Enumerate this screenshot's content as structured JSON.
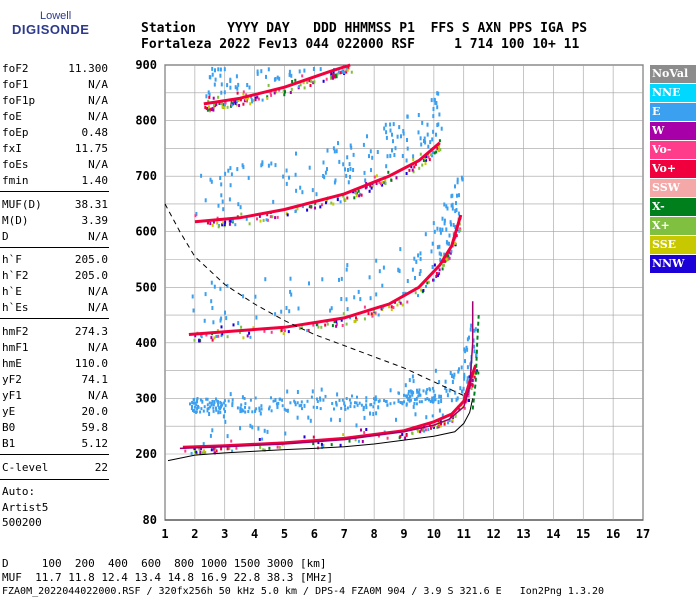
{
  "logo": {
    "line1": "Lowell",
    "line2": "DIGISONDE"
  },
  "header": {
    "line1": "Station    YYYY DAY   DDD HHMMSS P1  FFS S AXN PPS IGA PS",
    "line2": "Fortaleza 2022 Fev13 044 022000 RSF     1 714 100 10+ 11"
  },
  "params": [
    {
      "name": "foF2",
      "value": "11.300"
    },
    {
      "name": "foF1",
      "value": "N/A"
    },
    {
      "name": "foF1p",
      "value": "N/A"
    },
    {
      "name": "foE",
      "value": "N/A"
    },
    {
      "name": "foEp",
      "value": "0.48"
    },
    {
      "name": "fxI",
      "value": "11.75"
    },
    {
      "name": "foEs",
      "value": "N/A"
    },
    {
      "name": "fmin",
      "value": "1.40"
    },
    {
      "name": "MUF(D)",
      "value": "38.31"
    },
    {
      "name": "M(D)",
      "value": "3.39"
    },
    {
      "name": "D",
      "value": "N/A"
    },
    {
      "name": "h`F",
      "value": "205.0"
    },
    {
      "name": "h`F2",
      "value": "205.0"
    },
    {
      "name": "h`E",
      "value": "N/A"
    },
    {
      "name": "h`Es",
      "value": "N/A"
    },
    {
      "name": "hmF2",
      "value": "274.3"
    },
    {
      "name": "hmF1",
      "value": "N/A"
    },
    {
      "name": "hmE",
      "value": "110.0"
    },
    {
      "name": "yF2",
      "value": "74.1"
    },
    {
      "name": "yF1",
      "value": "N/A"
    },
    {
      "name": "yE",
      "value": "20.0"
    },
    {
      "name": "B0",
      "value": "59.8"
    },
    {
      "name": "B1",
      "value": "5.12"
    },
    {
      "name": "C-level",
      "value": "22"
    }
  ],
  "auto": {
    "line1": "Auto:",
    "line2": "Artist5",
    "line3": "500200"
  },
  "legend": [
    {
      "label": "NoVal",
      "color": "#8c8c8c"
    },
    {
      "label": "NNE",
      "color": "#00d8ff"
    },
    {
      "label": "E",
      "color": "#3ca0f0"
    },
    {
      "label": "W",
      "color": "#a800a8"
    },
    {
      "label": "Vo-",
      "color": "#ff3c8c"
    },
    {
      "label": "Vo+",
      "color": "#f0003c"
    },
    {
      "label": "SSW",
      "color": "#f4a8a8"
    },
    {
      "label": "X-",
      "color": "#00801c"
    },
    {
      "label": "X+",
      "color": "#80c040"
    },
    {
      "label": "SSE",
      "color": "#c8c800"
    },
    {
      "label": "NNW",
      "color": "#1c00d8"
    }
  ],
  "footer": {
    "line1": "D     100  200  400  600  800 1000 1500 3000 [km]",
    "line2": "MUF  11.7 11.8 12.4 13.4 14.8 16.9 22.8 38.3 [MHz]",
    "line3": "FZA0M_2022044022000.RSF / 320fx256h 50 kHz 5.0 km / DPS-4 FZA0M 904 / 3.9 S 321.6 E   Ion2Png 1.3.20"
  },
  "chart_data": {
    "type": "scatter",
    "xlim": [
      1,
      17
    ],
    "ylim": [
      80,
      900
    ],
    "x_ticks": [
      1,
      2,
      3,
      4,
      5,
      6,
      7,
      8,
      9,
      10,
      11,
      12,
      13,
      14,
      15,
      16,
      17
    ],
    "y_ticks": [
      80,
      200,
      300,
      400,
      500,
      600,
      700,
      800,
      900
    ],
    "grid": true,
    "legend_position": "right",
    "profile_curve": [
      [
        1.1,
        188
      ],
      [
        2,
        198
      ],
      [
        3,
        202
      ],
      [
        4,
        205
      ],
      [
        5,
        208
      ],
      [
        6,
        210
      ],
      [
        7,
        213
      ],
      [
        8,
        218
      ],
      [
        9,
        225
      ],
      [
        10,
        232
      ],
      [
        10.7,
        240
      ],
      [
        11.0,
        255
      ],
      [
        11.2,
        275
      ],
      [
        11.3,
        300
      ]
    ],
    "muf_curve": [
      [
        1,
        650
      ],
      [
        1.5,
        600
      ],
      [
        2,
        555
      ],
      [
        3,
        505
      ],
      [
        4,
        470
      ],
      [
        5,
        440
      ],
      [
        6,
        415
      ],
      [
        7,
        395
      ],
      [
        8,
        375
      ],
      [
        9,
        355
      ],
      [
        10,
        330
      ],
      [
        11,
        305
      ]
    ],
    "trace_curve": [
      [
        1.5,
        210
      ],
      [
        3,
        213
      ],
      [
        5,
        218
      ],
      [
        7,
        226
      ],
      [
        9,
        240
      ],
      [
        10,
        252
      ],
      [
        10.5,
        262
      ],
      [
        11,
        285
      ],
      [
        11.2,
        320
      ],
      [
        11.3,
        400
      ],
      [
        11.3,
        475
      ]
    ],
    "o_traces": [
      {
        "points": [
          [
            1.6,
            212
          ],
          [
            3,
            215
          ],
          [
            5,
            220
          ],
          [
            7,
            228
          ],
          [
            9,
            242
          ],
          [
            10,
            258
          ],
          [
            10.6,
            272
          ],
          [
            11,
            295
          ],
          [
            11.2,
            330
          ],
          [
            11.4,
            360
          ]
        ]
      },
      {
        "points": [
          [
            1.8,
            415
          ],
          [
            3,
            420
          ],
          [
            5,
            428
          ],
          [
            7,
            445
          ],
          [
            8.5,
            470
          ],
          [
            9.5,
            500
          ],
          [
            10.2,
            540
          ],
          [
            10.6,
            575
          ],
          [
            10.9,
            630
          ]
        ]
      },
      {
        "points": [
          [
            2.0,
            618
          ],
          [
            3.5,
            625
          ],
          [
            5,
            640
          ],
          [
            7,
            668
          ],
          [
            8.5,
            700
          ],
          [
            9.5,
            728
          ],
          [
            10.2,
            760
          ]
        ]
      },
      {
        "points": [
          [
            2.3,
            830
          ],
          [
            3.5,
            840
          ],
          [
            5,
            860
          ],
          [
            6.5,
            888
          ],
          [
            7.2,
            900
          ]
        ]
      }
    ],
    "x_traces": [
      {
        "points": [
          [
            1.8,
            290
          ],
          [
            3,
            290
          ],
          [
            5,
            292
          ],
          [
            7,
            295
          ],
          [
            9,
            302
          ],
          [
            10,
            310
          ]
        ]
      }
    ]
  }
}
